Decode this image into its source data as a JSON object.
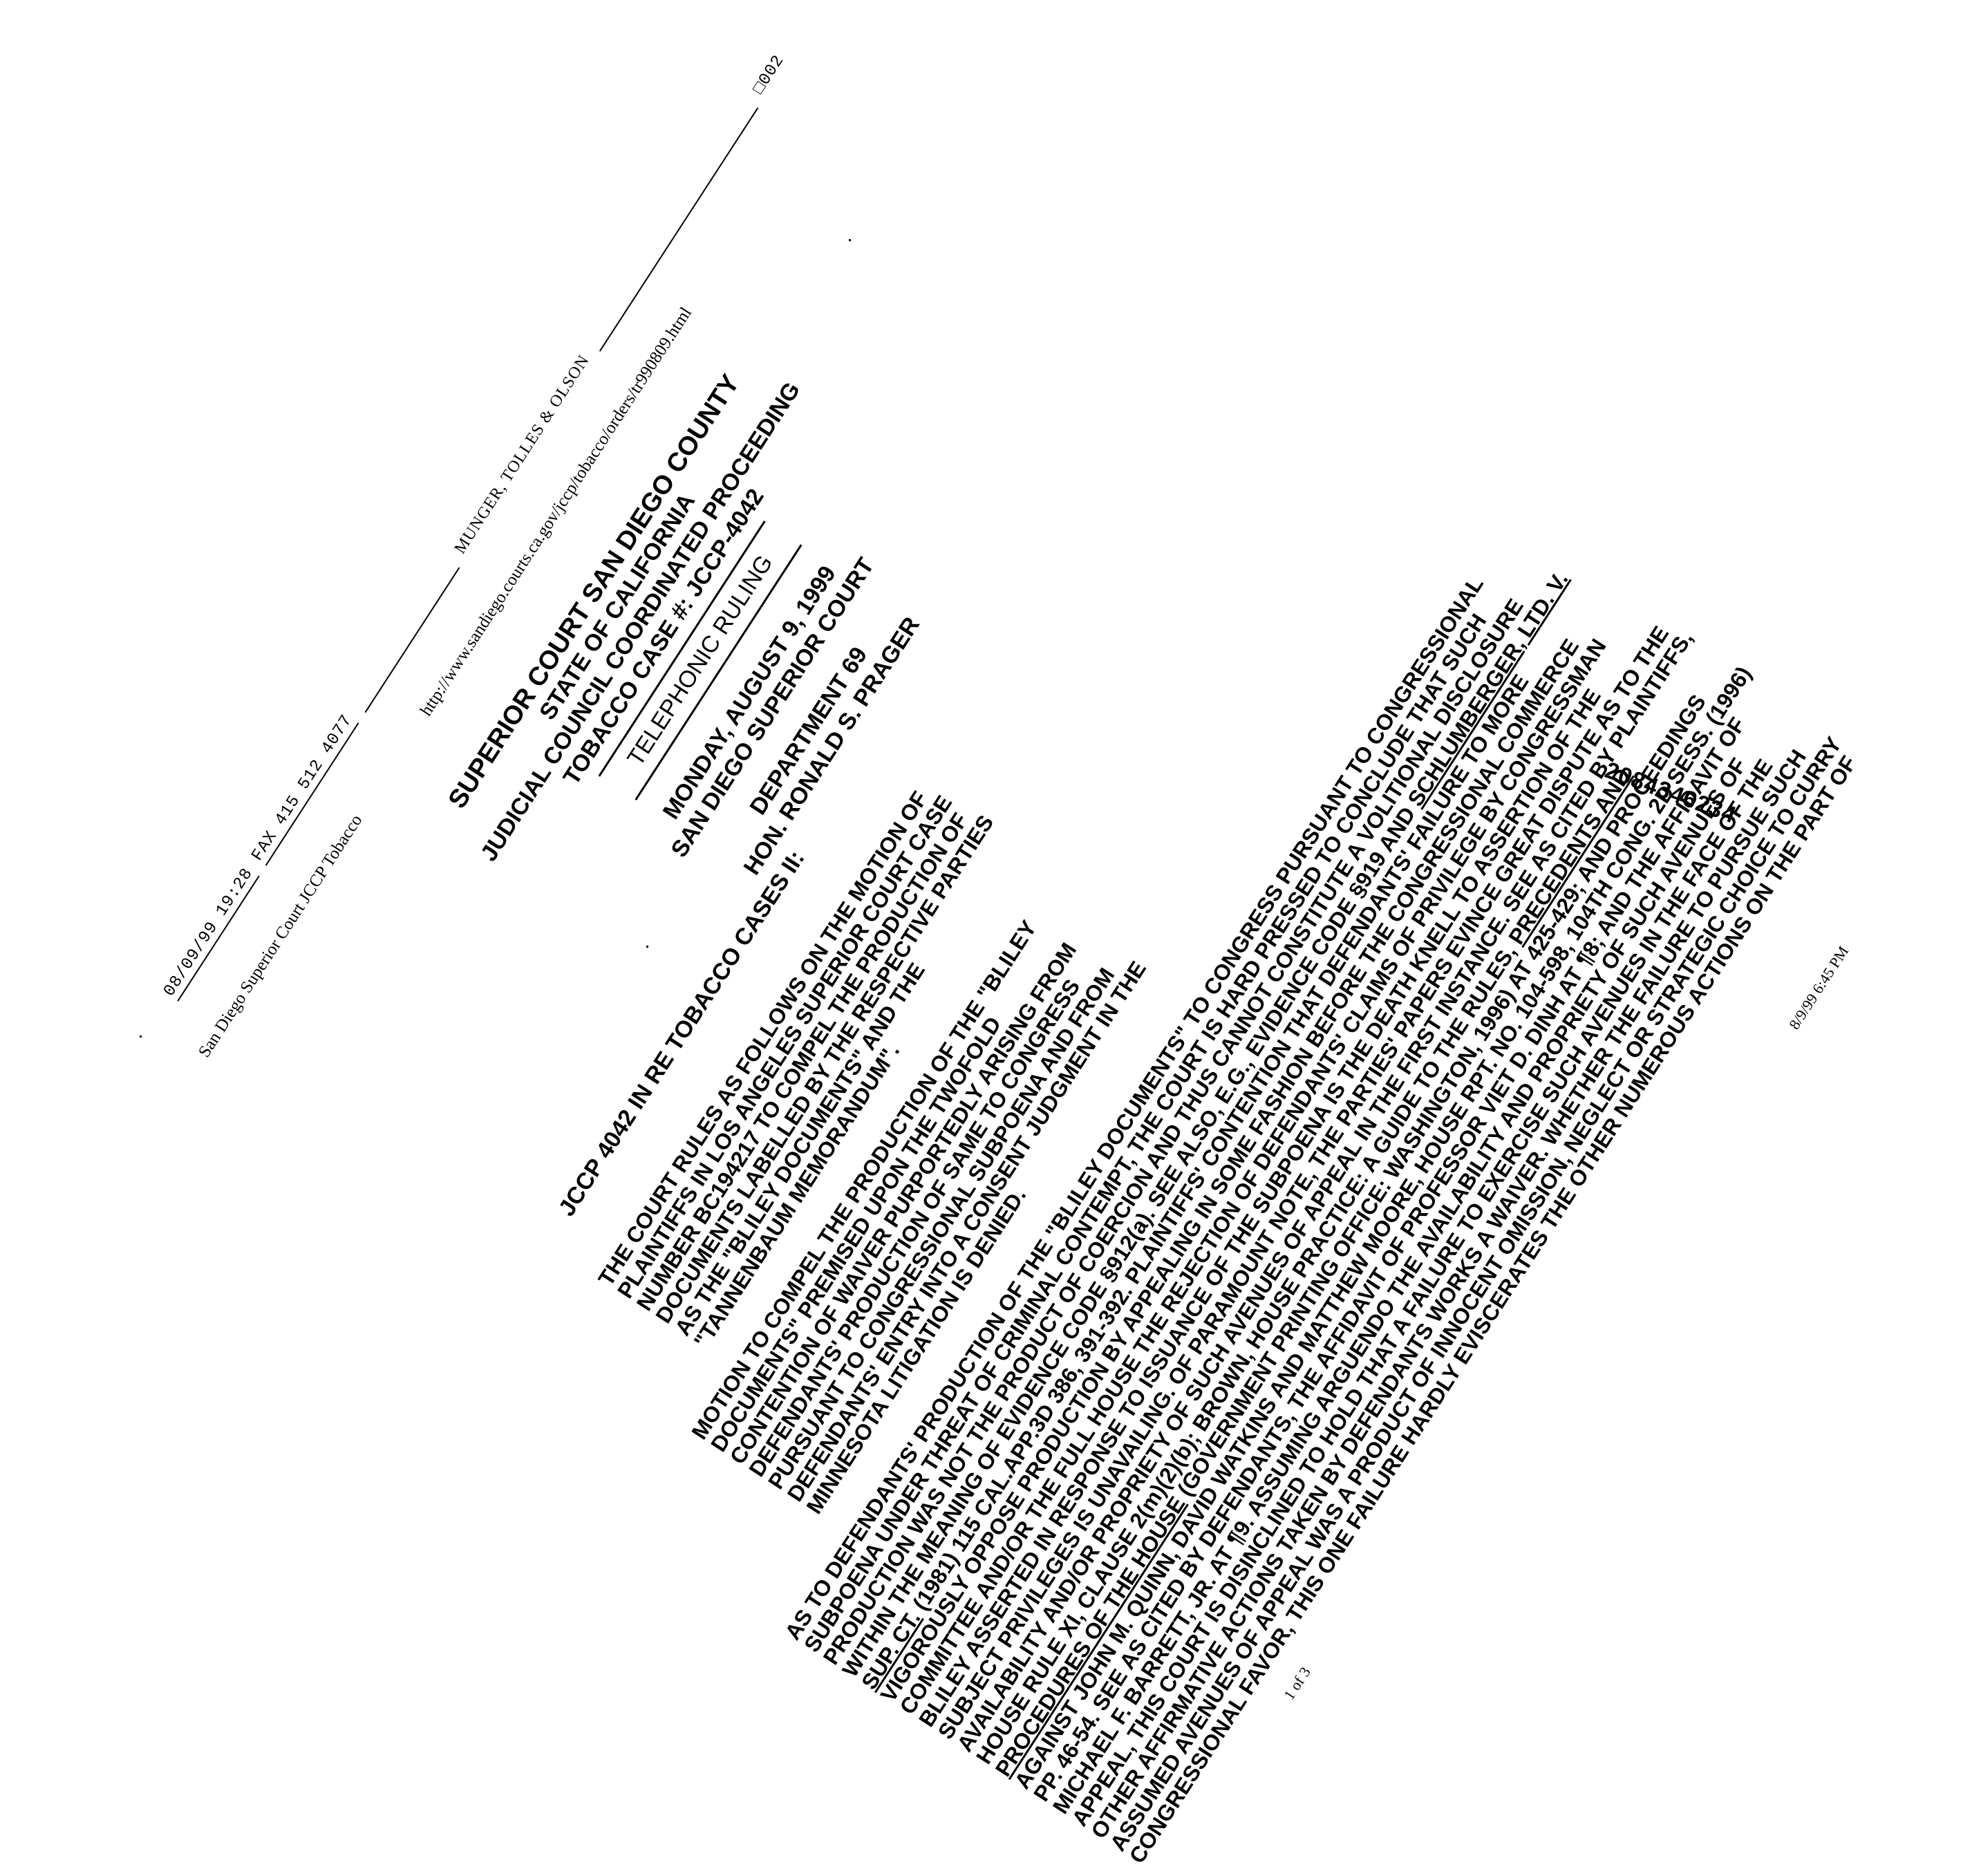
{
  "fax_header": {
    "datetime": "08/09/99  19:28",
    "fax": "FAX  415  512  4077",
    "firm": "MUNGER, TOLLES & OLSON",
    "page_code": "□002"
  },
  "browser_header": {
    "title": "San Diego Superior Court JCCP Tobacco",
    "url": "http://www.sandiego.courts.ca.gov/jccp/tobacco/orders/tr990809.html"
  },
  "caption": {
    "court": "SUPERIOR COURT SAN DIEGO COUNTY",
    "state": "STATE OF CALIFORNIA",
    "proceeding": "JUDICIAL COUNCIL COORDINATED PROCEEDING",
    "case": "TOBACCO CASE #: JCCP-4042",
    "ruling_type": "TELEPHONIC RULING",
    "date": "MONDAY, AUGUST 9, 1999",
    "venue": "SAN DIEGO SUPERIOR COURT",
    "department": "DEPARTMENT 69",
    "judge": "HON. RONALD S. PRAGER"
  },
  "case_title": "JCCP 4042 IN RE TOBACCO CASES II:",
  "paragraphs": {
    "p1": "THE COURT RULES AS FOLLOWS ON THE MOTION OF PLAINTIFFS IN LOS ANGELES SUPERIOR COURT CASE NUMBER BC194217 TO COMPEL THE PRODUCTION OF DOCUMENTS LABELLED BY THE RESPECTIVE PARTIES AS THE \"BLILEY DOCUMENTS\" AND THE \"TANNENBAUM MEMORANDUM\".",
    "p2": "MOTION TO COMPEL THE PRODUCTION OF THE \"BLILEY DOCUMENTS\" PREMISED UPON THE TWOFOLD CONTENTION OF WAIVER PURPORTEDLY ARISING FROM DEFENDANTS' PRODUCTION OF SAME TO CONGRESS PURSUANT TO CONGRESSIONAL SUBPOENA AND FROM DEFENDANTS' ENTRY INTO A CONSENT JUDGMENT IN THE MINNESOTA LITIGATION IS DENIED.",
    "p3_a": "AS TO DEFENDANTS' PRODUCTION OF THE \"BLILEY DOCUMENTS\" TO CONGRESS PURSUANT TO CONGRESSIONAL SUBPOENA UNDER THREAT OF CRIMINAL CONTEMPT, THE COURT IS HARD PRESSED TO CONCLUDE THAT SUCH PRODUCTION WAS NOT THE PRODUCT OF COERCION AND THUS CANNOT CONSTITUTE A VOLITIONAL DISCLOSURE WITHIN THE MEANING OF EVIDENCE CODE §912(a). SEE ALSO, E.G., EVIDENCE CODE §919 AND",
    "p3_case": "SCHLUMBERGER, LTD. V. SUP. CT.",
    "p3_b": "(1981) 115 CAL.APP.3D 386, 391-392. PLAINTIFFS' CONTENTION THAT DEFENDANTS' FAILURE TO MORE VIGOROUSLY OPPOSE PRODUCTION BY APPEALING IN SOME FASHION BEFORE THE CONGRESSIONAL COMMERCE COMMITTEE AND/OR THE FULL HOUSE THE REJECTION OF DEFENDANTS' CLAIMS OF PRIVILEGE BY CONGRESSMAN BLILEY ASSERTED IN RESPONSE TO ISSUANCE OF THE SUBPOENA IS THE DEATH KNELL TO ASSERTION OF THE SUBJECT PRIVILEGES IS UNAVAILING. OF PARAMOUNT NOTE, THE PARTIES' PAPERS EVINCE GREAT DISPUTE AS TO THE AVAILABILITY AND/OR PROPRIETY OF SUCH AVENUES OF APPEAL IN THE FIRST INSTANCE. SEE AS CITED BY PLAINTIFFS, HOUSE RULE XI, CLAUSE 2(m)(2)(b); BROWN, HOUSE PRACTICE: A GUIDE TO THE RULES,",
    "p3_ul": "PRECEDENTS AND PROCEDURES OF THE HOUSE",
    "p3_c": "(GOVERNMENT PRINTING OFFICE: WASHINGTON, 1996) AT 425-429; AND PROCEEDINGS AGAINST JOHN M. QUINN, DAVID WATKINS AND MATTHEW MOORE, HOUSE RPT. NO. 104-598, 104TH CONG. 2D SESS. (1996) PP. 46-54. SEE AS CITED BY DEFENDANTS, THE AFFIDAVIT OF PROFESSOR VIET D. DINH AT ¶8; AND THE AFFIDAVIT OF MICHAEL F. BARRETT, JR. AT ¶9. ASSUMING ARGUENDO THE AVAILABILITY AND PROPRIETY OF SUCH AVENUES OF APPEAL, THIS COURT IS DISINCLINED TO HOLD THAT A FAILURE TO EXERCISE SUCH AVENUES IN THE FACE OF THE OTHER AFFIRMATIVE ACTIONS TAKEN BY DEFENDANTS WORKS A WAIVER. WHETHER THE FAILURE TO PURSUE SUCH ASSUMED AVENUES OF APPEAL WAS A PRODUCT OF INNOCENT OMISSION, NEGLECT OR STRATEGIC CHOICE TO CURRY CONGRESSIONAL FAVOR, THIS ONE FAILURE HARDLY EVISCERATES THE OTHER NUMEROUS ACTIONS ON THE PART OF"
  },
  "barcode_number": "2084346234",
  "footer": {
    "printed": "8/9/99 6:45 PM",
    "page": "1 of 3"
  }
}
